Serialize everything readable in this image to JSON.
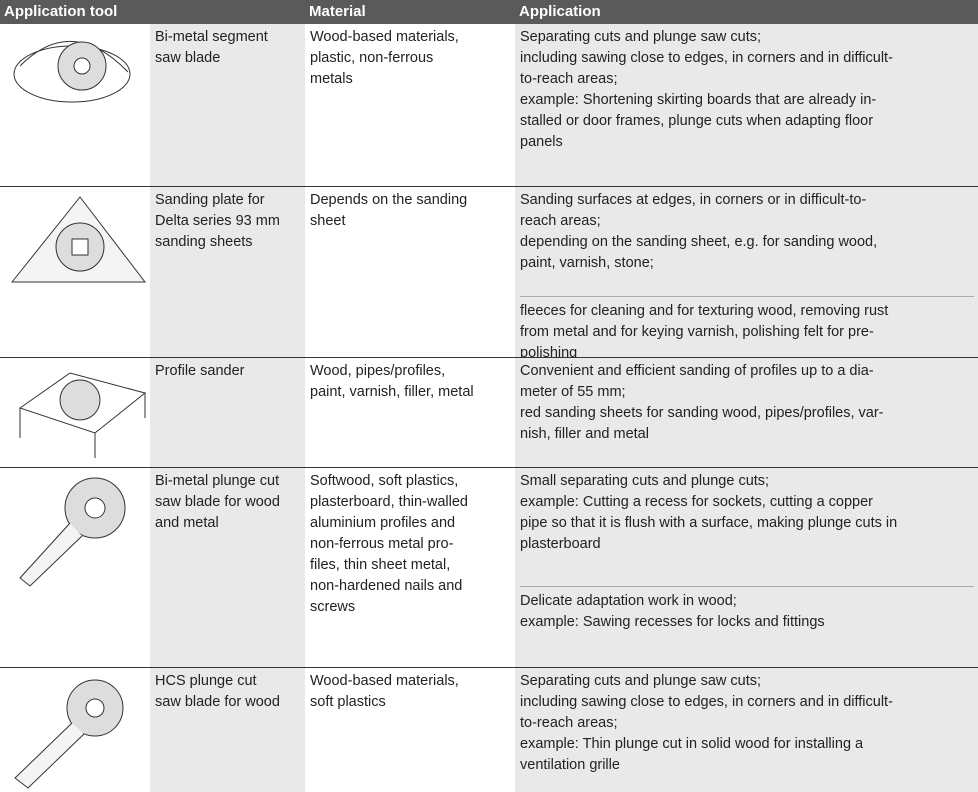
{
  "header": {
    "tool": "Application tool",
    "name": "",
    "material": "Material",
    "application": "Application"
  },
  "rows": [
    {
      "name": [
        "Bi-metal segment",
        "saw blade"
      ],
      "material": [
        "Wood-based materials,",
        "plastic, non-ferrous",
        "metals"
      ],
      "application": [
        [
          "Separating cuts and plunge saw cuts;",
          "including sawing close to edges, in corners and in difficult-",
          "to-reach areas;",
          "example: Shortening skirting boards that are already in-",
          "stalled or door frames, plunge cuts when adapting floor",
          "panels"
        ]
      ]
    },
    {
      "name": [
        "Sanding plate for",
        "Delta series 93 mm",
        "sanding sheets"
      ],
      "material": [
        "Depends on the sanding",
        "sheet"
      ],
      "application": [
        [
          "Sanding surfaces at edges, in corners or in difficult-to-",
          "reach areas;",
          "depending on the sanding sheet, e.g. for sanding wood,",
          "paint, varnish, stone;"
        ],
        [
          "fleeces for cleaning and for texturing wood, removing rust",
          "from metal and for keying varnish, polishing felt for pre-",
          "polishing"
        ]
      ]
    },
    {
      "name": [
        "Profile sander"
      ],
      "material": [
        "Wood, pipes/profiles,",
        "paint, varnish, filler, metal"
      ],
      "application": [
        [
          "Convenient and efficient sanding of profiles up to a dia-",
          "meter of 55 mm;",
          "red sanding sheets for sanding wood, pipes/profiles, var-",
          "nish, filler and metal"
        ]
      ]
    },
    {
      "name": [
        "Bi-metal plunge cut",
        "saw blade for wood",
        "and metal"
      ],
      "material": [
        "Softwood, soft plastics,",
        "plasterboard, thin-walled",
        "aluminium profiles and",
        "non-ferrous metal pro-",
        "files, thin sheet metal,",
        "non-hardened nails and",
        "screws"
      ],
      "application": [
        [
          "Small separating cuts and plunge cuts;",
          "example: Cutting a recess for sockets, cutting a copper",
          "pipe so that it is flush with a surface, making plunge cuts in",
          "plasterboard"
        ],
        [
          "Delicate adaptation work in wood;",
          "example: Sawing recesses for locks and fittings"
        ]
      ]
    },
    {
      "name": [
        "HCS plunge cut",
        "saw blade for wood"
      ],
      "material": [
        "Wood-based materials,",
        "soft plastics"
      ],
      "application": [
        [
          "Separating cuts and plunge saw cuts;",
          "including sawing close to edges, in corners and in difficult-",
          "to-reach areas;",
          "example: Thin plunge cut in solid wood for installing a",
          "ventilation grille"
        ]
      ]
    }
  ]
}
